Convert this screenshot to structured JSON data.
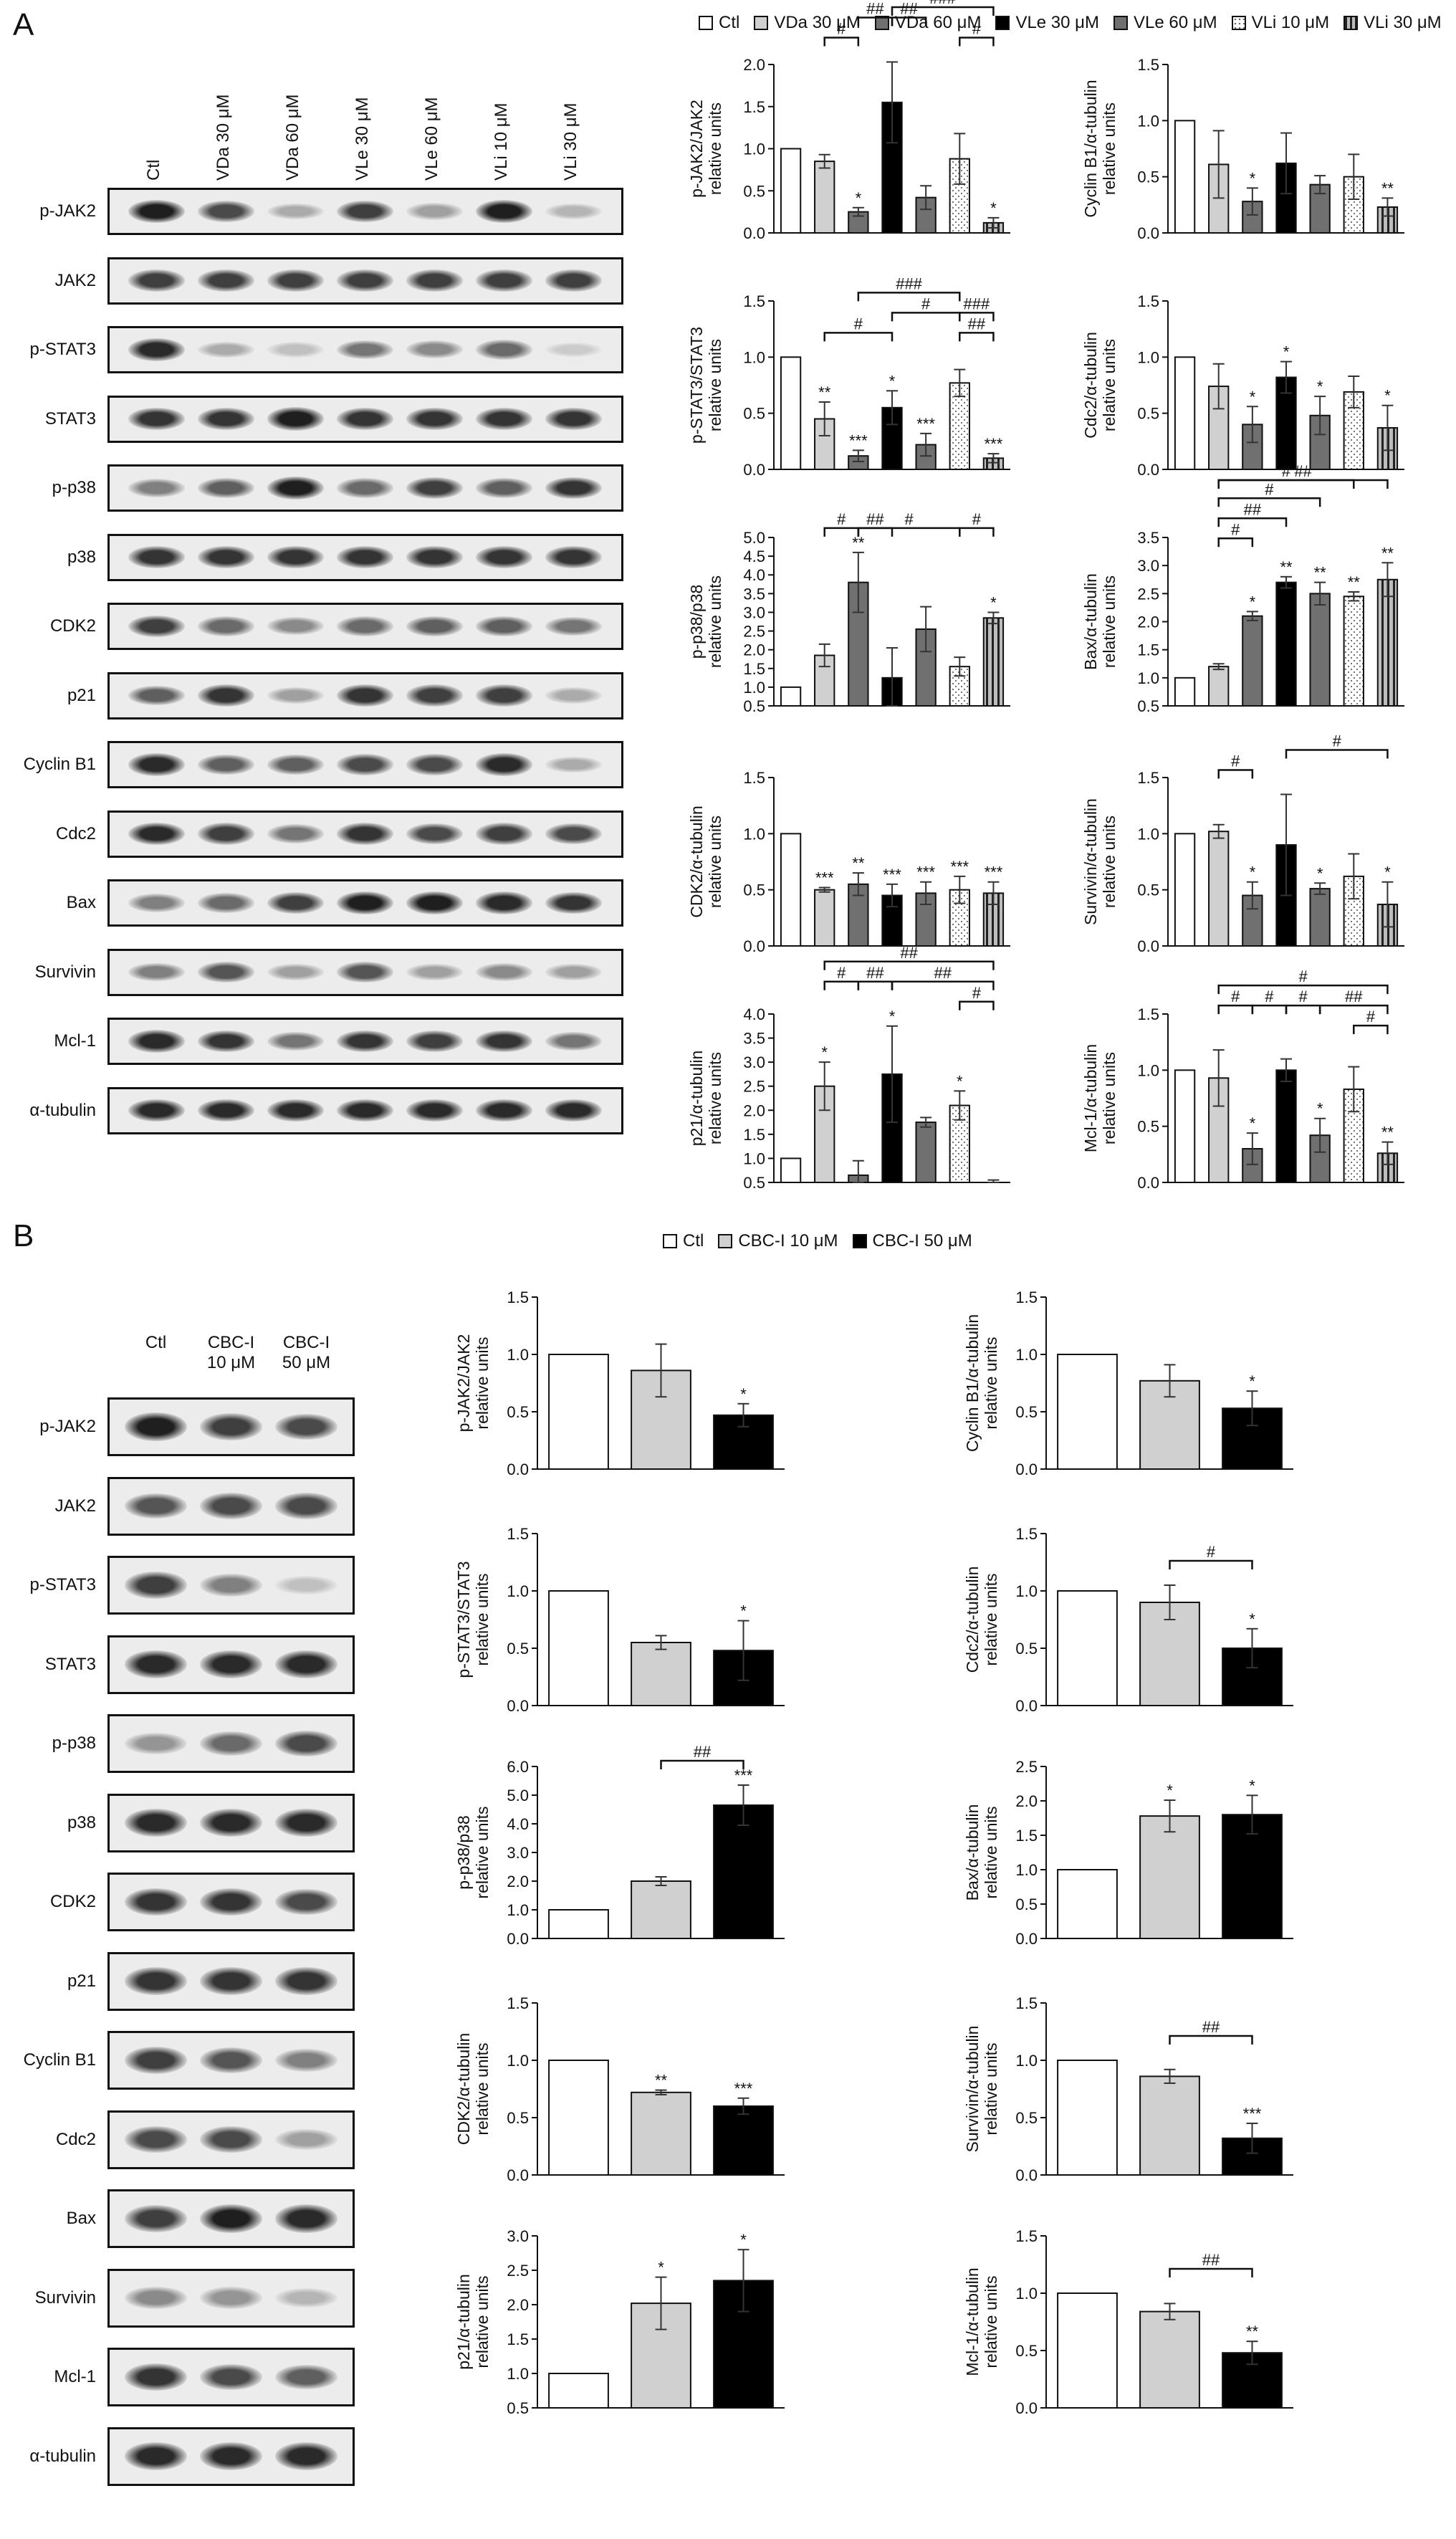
{
  "panelA": {
    "letter": "A",
    "legend": [
      {
        "label": "Ctl",
        "style": "white"
      },
      {
        "label": "VDa 30 μM",
        "style": "light"
      },
      {
        "label": "VDa 60 μM",
        "style": "dark"
      },
      {
        "label": "VLe 30 μM",
        "style": "black"
      },
      {
        "label": "VLe 60 μM",
        "style": "dark"
      },
      {
        "label": "VLi 10 μM",
        "style": "dotted"
      },
      {
        "label": "VLi 30 μM",
        "style": "striped"
      }
    ],
    "lanes": [
      "Ctl",
      "VDa 30 μM",
      "VDa 60 μM",
      "VLe 30 μM",
      "VLe 60 μM",
      "VLi 10 μM",
      "VLi 30 μM"
    ],
    "proteins": [
      "p-JAK2",
      "JAK2",
      "p-STAT3",
      "STAT3",
      "p-p38",
      "p38",
      "CDK2",
      "p21",
      "Cyclin B1",
      "Cdc2",
      "Bax",
      "Survivin",
      "Mcl-1",
      "α-tubulin"
    ]
  },
  "panelB": {
    "letter": "B",
    "legend": [
      {
        "label": "Ctl",
        "style": "white"
      },
      {
        "label": "CBC-I 10 μM",
        "style": "light"
      },
      {
        "label": "CBC-I 50 μM",
        "style": "black"
      }
    ],
    "lanes": [
      "Ctl",
      "CBC-I\n10 μM",
      "CBC-I\n50 μM"
    ],
    "lane_line1": [
      "Ctl",
      "CBC-I",
      "CBC-I"
    ],
    "lane_line2": [
      "",
      "10 μM",
      "50 μM"
    ],
    "proteins": [
      "p-JAK2",
      "JAK2",
      "p-STAT3",
      "STAT3",
      "p-p38",
      "p38",
      "CDK2",
      "p21",
      "Cyclin B1",
      "Cdc2",
      "Bax",
      "Survivin",
      "Mcl-1",
      "α-tubulin"
    ]
  },
  "band_intensity": {
    "A": [
      [
        0.95,
        0.75,
        0.3,
        0.8,
        0.35,
        0.95,
        0.25
      ],
      [
        0.8,
        0.8,
        0.8,
        0.8,
        0.8,
        0.8,
        0.8
      ],
      [
        0.9,
        0.3,
        0.2,
        0.55,
        0.45,
        0.6,
        0.15
      ],
      [
        0.85,
        0.85,
        0.95,
        0.85,
        0.85,
        0.85,
        0.85
      ],
      [
        0.5,
        0.65,
        0.95,
        0.6,
        0.8,
        0.65,
        0.85
      ],
      [
        0.85,
        0.85,
        0.85,
        0.85,
        0.85,
        0.85,
        0.85
      ],
      [
        0.8,
        0.6,
        0.45,
        0.6,
        0.65,
        0.65,
        0.55
      ],
      [
        0.65,
        0.85,
        0.35,
        0.85,
        0.8,
        0.8,
        0.3
      ],
      [
        0.9,
        0.65,
        0.65,
        0.75,
        0.75,
        0.9,
        0.3
      ],
      [
        0.9,
        0.8,
        0.55,
        0.85,
        0.75,
        0.8,
        0.75
      ],
      [
        0.5,
        0.6,
        0.8,
        0.95,
        0.95,
        0.9,
        0.85
      ],
      [
        0.5,
        0.7,
        0.35,
        0.7,
        0.35,
        0.45,
        0.35
      ],
      [
        0.9,
        0.85,
        0.55,
        0.85,
        0.8,
        0.85,
        0.55
      ],
      [
        0.9,
        0.9,
        0.9,
        0.9,
        0.9,
        0.9,
        0.9
      ]
    ],
    "B": [
      [
        0.95,
        0.8,
        0.75
      ],
      [
        0.7,
        0.75,
        0.75
      ],
      [
        0.8,
        0.5,
        0.2
      ],
      [
        0.9,
        0.9,
        0.9
      ],
      [
        0.4,
        0.6,
        0.75
      ],
      [
        0.9,
        0.9,
        0.9
      ],
      [
        0.85,
        0.85,
        0.75
      ],
      [
        0.85,
        0.85,
        0.85
      ],
      [
        0.8,
        0.7,
        0.5
      ],
      [
        0.75,
        0.75,
        0.35
      ],
      [
        0.8,
        0.95,
        0.9
      ],
      [
        0.45,
        0.4,
        0.25
      ],
      [
        0.85,
        0.75,
        0.65
      ],
      [
        0.9,
        0.9,
        0.9
      ]
    ]
  },
  "colors": {
    "white": "#ffffff",
    "light": "#d0d0d0",
    "dark": "#707070",
    "black": "#000000"
  },
  "chart_data": [
    {
      "id": "A-pJAK2",
      "type": "bar",
      "panel": "A",
      "ylabel": "p-JAK2/JAK2\nrelative units",
      "ylim": [
        0,
        2.0
      ],
      "yticks": [
        "0.0",
        "0.5",
        "1.0",
        "1.5",
        "2.0"
      ],
      "values": [
        1.0,
        0.85,
        0.25,
        1.55,
        0.42,
        0.88,
        0.12
      ],
      "errors": [
        0,
        0.08,
        0.05,
        0.48,
        0.14,
        0.3,
        0.06
      ],
      "stars": [
        "",
        "",
        "*",
        "",
        "",
        "",
        "*"
      ],
      "brackets": [
        {
          "from": 1,
          "to": 2,
          "label": "#",
          "level": 0
        },
        {
          "from": 3,
          "to": 4,
          "label": "##",
          "level": 1
        },
        {
          "from": 5,
          "to": 6,
          "label": "#",
          "level": 0
        },
        {
          "from": 2,
          "to": 3,
          "label": "##",
          "level": 1
        },
        {
          "from": 3,
          "to": 6,
          "label": "###",
          "level": 2
        }
      ]
    },
    {
      "id": "A-CyclinB1",
      "type": "bar",
      "panel": "A",
      "ylabel": "Cyclin B1/α-tubulin\nrelative units",
      "ylim": [
        0,
        1.5
      ],
      "yticks": [
        "0.0",
        "0.5",
        "1.0",
        "1.5"
      ],
      "values": [
        1.0,
        0.61,
        0.28,
        0.62,
        0.43,
        0.5,
        0.23
      ],
      "errors": [
        0,
        0.3,
        0.12,
        0.27,
        0.08,
        0.2,
        0.08
      ],
      "stars": [
        "",
        "",
        "*",
        "",
        "",
        "",
        "**"
      ],
      "brackets": []
    },
    {
      "id": "A-pSTAT3",
      "type": "bar",
      "panel": "A",
      "ylabel": "p-STAT3/STAT3\nrelative units",
      "ylim": [
        0,
        1.5
      ],
      "yticks": [
        "0.0",
        "0.5",
        "1.0",
        "1.5"
      ],
      "values": [
        1.0,
        0.45,
        0.12,
        0.55,
        0.22,
        0.77,
        0.1
      ],
      "errors": [
        0,
        0.15,
        0.05,
        0.15,
        0.1,
        0.12,
        0.04
      ],
      "stars": [
        "",
        "**",
        "***",
        "*",
        "***",
        "",
        "***"
      ],
      "brackets": [
        {
          "from": 1,
          "to": 3,
          "label": "#",
          "level": 0
        },
        {
          "from": 5,
          "to": 6,
          "label": "##",
          "level": 0
        },
        {
          "from": 3,
          "to": 5,
          "label": "#",
          "level": 1
        },
        {
          "from": 5,
          "to": 6,
          "label": "###",
          "level": 1
        },
        {
          "from": 2,
          "to": 5,
          "label": "###",
          "level": 2
        }
      ]
    },
    {
      "id": "A-Cdc2",
      "type": "bar",
      "panel": "A",
      "ylabel": "Cdc2/α-tubulin\nrelative units",
      "ylim": [
        0,
        1.5
      ],
      "yticks": [
        "0.0",
        "0.5",
        "1.0",
        "1.5"
      ],
      "values": [
        1.0,
        0.74,
        0.4,
        0.82,
        0.48,
        0.69,
        0.37
      ],
      "errors": [
        0,
        0.2,
        0.16,
        0.14,
        0.17,
        0.14,
        0.2
      ],
      "stars": [
        "",
        "",
        "*",
        "*",
        "*",
        "",
        "*"
      ],
      "brackets": []
    },
    {
      "id": "A-pp38",
      "type": "bar",
      "panel": "A",
      "ylabel": "p-p38/p38\nrelative units",
      "ylim": [
        0.5,
        5.0
      ],
      "yticks": [
        "0.5",
        "1.0",
        "1.5",
        "2.0",
        "2.5",
        "3.0",
        "3.5",
        "4.0",
        "4.5",
        "5.0"
      ],
      "values": [
        1.0,
        1.85,
        3.8,
        1.25,
        2.55,
        1.55,
        2.85
      ],
      "errors": [
        0,
        0.3,
        0.8,
        0.8,
        0.6,
        0.25,
        0.15
      ],
      "stars": [
        "",
        "",
        "**",
        "",
        "",
        "",
        "*"
      ],
      "brackets": [
        {
          "from": 1,
          "to": 2,
          "label": "#",
          "level": 0
        },
        {
          "from": 2,
          "to": 3,
          "label": "##",
          "level": 0
        },
        {
          "from": 2,
          "to": 5,
          "label": "#",
          "level": 0
        },
        {
          "from": 5,
          "to": 6,
          "label": "#",
          "level": 0
        }
      ]
    },
    {
      "id": "A-Bax",
      "type": "bar",
      "panel": "A",
      "ylabel": "Bax/α-tubulin\nrelative units",
      "ylim": [
        0.5,
        3.5
      ],
      "yticks": [
        "0.5",
        "1.0",
        "1.5",
        "2.0",
        "2.5",
        "3.0",
        "3.5"
      ],
      "values": [
        1.0,
        1.2,
        2.1,
        2.7,
        2.5,
        2.45,
        2.75
      ],
      "errors": [
        0,
        0.05,
        0.08,
        0.1,
        0.2,
        0.08,
        0.3
      ],
      "stars": [
        "",
        "",
        "*",
        "**",
        "**",
        "**",
        "**"
      ],
      "brackets": [
        {
          "from": 1,
          "to": 2,
          "label": "#",
          "level": 0
        },
        {
          "from": 1,
          "to": 3,
          "label": "##",
          "level": 1
        },
        {
          "from": 1,
          "to": 4,
          "label": "#",
          "level": 2
        },
        {
          "from": 1,
          "to": 5,
          "label": "#",
          "level": 3
        },
        {
          "from": 1,
          "to": 6,
          "label": "##",
          "level": 4
        }
      ]
    },
    {
      "id": "A-CDK2",
      "type": "bar",
      "panel": "A",
      "ylabel": "CDK2/α-tubulin\nrelative units",
      "ylim": [
        0,
        1.5
      ],
      "yticks": [
        "0.0",
        "0.5",
        "1.0",
        "1.5"
      ],
      "values": [
        1.0,
        0.5,
        0.55,
        0.45,
        0.47,
        0.5,
        0.47
      ],
      "errors": [
        0,
        0.02,
        0.1,
        0.1,
        0.1,
        0.12,
        0.1
      ],
      "stars": [
        "",
        "***",
        "**",
        "***",
        "***",
        "***",
        "***"
      ],
      "brackets": []
    },
    {
      "id": "A-Survivin",
      "type": "bar",
      "panel": "A",
      "ylabel": "Survivin/α-tubulin\nrelative units",
      "ylim": [
        0,
        1.5
      ],
      "yticks": [
        "0.0",
        "0.5",
        "1.0",
        "1.5"
      ],
      "values": [
        1.0,
        1.02,
        0.45,
        0.9,
        0.51,
        0.62,
        0.37
      ],
      "errors": [
        0,
        0.06,
        0.12,
        0.45,
        0.05,
        0.2,
        0.2
      ],
      "stars": [
        "",
        "",
        "*",
        "",
        "*",
        "",
        "*"
      ],
      "brackets": [
        {
          "from": 1,
          "to": 2,
          "label": "#",
          "level": 0
        },
        {
          "from": 3,
          "to": 6,
          "label": "#",
          "level": 1
        }
      ]
    },
    {
      "id": "A-p21",
      "type": "bar",
      "panel": "A",
      "ylabel": "p21/α-tubulin\nrelative units",
      "ylim": [
        0.5,
        4.0
      ],
      "yticks": [
        "0.5",
        "1.0",
        "1.5",
        "2.0",
        "2.5",
        "3.0",
        "3.5",
        "4.0"
      ],
      "values": [
        1.0,
        2.5,
        0.65,
        2.75,
        1.75,
        2.1,
        0.4
      ],
      "errors": [
        0,
        0.5,
        0.3,
        1.0,
        0.1,
        0.3,
        0.15
      ],
      "stars": [
        "",
        "*",
        "",
        "*",
        "",
        "*",
        ""
      ],
      "brackets": [
        {
          "from": 5,
          "to": 6,
          "label": "#",
          "level": 0
        },
        {
          "from": 1,
          "to": 2,
          "label": "#",
          "level": 1
        },
        {
          "from": 2,
          "to": 3,
          "label": "##",
          "level": 1
        },
        {
          "from": 3,
          "to": 6,
          "label": "##",
          "level": 1
        },
        {
          "from": 1,
          "to": 6,
          "label": "##",
          "level": 2
        }
      ]
    },
    {
      "id": "A-Mcl1",
      "type": "bar",
      "panel": "A",
      "ylabel": "Mcl-1/α-tubulin\nrelative units",
      "ylim": [
        0,
        1.5
      ],
      "yticks": [
        "0.0",
        "0.5",
        "1.0",
        "1.5"
      ],
      "values": [
        1.0,
        0.93,
        0.3,
        1.0,
        0.42,
        0.83,
        0.26
      ],
      "errors": [
        0,
        0.25,
        0.14,
        0.1,
        0.15,
        0.2,
        0.1
      ],
      "stars": [
        "",
        "",
        "*",
        "",
        "*",
        "",
        "**"
      ],
      "brackets": [
        {
          "from": 5,
          "to": 6,
          "label": "#",
          "level": 0
        },
        {
          "from": 1,
          "to": 2,
          "label": "#",
          "level": 1
        },
        {
          "from": 2,
          "to": 3,
          "label": "#",
          "level": 1
        },
        {
          "from": 3,
          "to": 4,
          "label": "#",
          "level": 1
        },
        {
          "from": 4,
          "to": 6,
          "label": "##",
          "level": 1
        },
        {
          "from": 1,
          "to": 6,
          "label": "#",
          "level": 2
        }
      ]
    },
    {
      "id": "B-pJAK2",
      "type": "bar",
      "panel": "B",
      "ylabel": "p-JAK2/JAK2\nrelative units",
      "ylim": [
        0,
        1.5
      ],
      "yticks": [
        "0.0",
        "0.5",
        "1.0",
        "1.5"
      ],
      "values": [
        1.0,
        0.86,
        0.47
      ],
      "errors": [
        0,
        0.23,
        0.1
      ],
      "stars": [
        "",
        "",
        "*"
      ],
      "brackets": []
    },
    {
      "id": "B-CyclinB1",
      "type": "bar",
      "panel": "B",
      "ylabel": "Cyclin B1/α-tubulin\nrelative units",
      "ylim": [
        0,
        1.5
      ],
      "yticks": [
        "0.0",
        "0.5",
        "1.0",
        "1.5"
      ],
      "values": [
        1.0,
        0.77,
        0.53
      ],
      "errors": [
        0,
        0.14,
        0.15
      ],
      "stars": [
        "",
        "",
        "*"
      ],
      "brackets": []
    },
    {
      "id": "B-pSTAT3",
      "type": "bar",
      "panel": "B",
      "ylabel": "p-STAT3/STAT3\nrelative units",
      "ylim": [
        0,
        1.5
      ],
      "yticks": [
        "0.0",
        "0.5",
        "1.0",
        "1.5"
      ],
      "values": [
        1.0,
        0.55,
        0.48
      ],
      "errors": [
        0,
        0.06,
        0.26
      ],
      "stars": [
        "",
        "",
        "*"
      ],
      "brackets": []
    },
    {
      "id": "B-Cdc2",
      "type": "bar",
      "panel": "B",
      "ylabel": "Cdc2/α-tubulin\nrelative units",
      "ylim": [
        0,
        1.5
      ],
      "yticks": [
        "0.0",
        "0.5",
        "1.0",
        "1.5"
      ],
      "values": [
        1.0,
        0.9,
        0.5
      ],
      "errors": [
        0,
        0.15,
        0.17
      ],
      "stars": [
        "",
        "",
        "*"
      ],
      "brackets": [
        {
          "from": 1,
          "to": 2,
          "label": "#",
          "level": 0
        }
      ]
    },
    {
      "id": "B-pp38",
      "type": "bar",
      "panel": "B",
      "ylabel": "p-p38/p38\nrelative units",
      "ylim": [
        0,
        6.0
      ],
      "yticks": [
        "0.0",
        "1.0",
        "2.0",
        "3.0",
        "4.0",
        "5.0",
        "6.0"
      ],
      "values": [
        1.0,
        2.0,
        4.65
      ],
      "errors": [
        0,
        0.15,
        0.7
      ],
      "stars": [
        "",
        "",
        "***"
      ],
      "brackets": [
        {
          "from": 1,
          "to": 2,
          "label": "##",
          "level": 0
        }
      ]
    },
    {
      "id": "B-Bax",
      "type": "bar",
      "panel": "B",
      "ylabel": "Bax/α-tubulin\nrelative units",
      "ylim": [
        0,
        2.5
      ],
      "yticks": [
        "0.0",
        "0.5",
        "1.0",
        "1.5",
        "2.0",
        "2.5"
      ],
      "values": [
        1.0,
        1.78,
        1.8
      ],
      "errors": [
        0,
        0.23,
        0.28
      ],
      "stars": [
        "",
        "*",
        "*"
      ],
      "brackets": []
    },
    {
      "id": "B-CDK2",
      "type": "bar",
      "panel": "B",
      "ylabel": "CDK2/α-tubulin\nrelative units",
      "ylim": [
        0,
        1.5
      ],
      "yticks": [
        "0.0",
        "0.5",
        "1.0",
        "1.5"
      ],
      "values": [
        1.0,
        0.72,
        0.6
      ],
      "errors": [
        0,
        0.02,
        0.07
      ],
      "stars": [
        "",
        "**",
        "***"
      ],
      "brackets": []
    },
    {
      "id": "B-Survivin",
      "type": "bar",
      "panel": "B",
      "ylabel": "Survivin/α-tubulin\nrelative units",
      "ylim": [
        0,
        1.5
      ],
      "yticks": [
        "0.0",
        "0.5",
        "1.0",
        "1.5"
      ],
      "values": [
        1.0,
        0.86,
        0.32
      ],
      "errors": [
        0,
        0.06,
        0.13
      ],
      "stars": [
        "",
        "",
        "***"
      ],
      "brackets": [
        {
          "from": 1,
          "to": 2,
          "label": "##",
          "level": 0
        }
      ]
    },
    {
      "id": "B-p21",
      "type": "bar",
      "panel": "B",
      "ylabel": "p21/α-tubulin\nrelative units",
      "ylim": [
        0.5,
        3.0
      ],
      "yticks": [
        "0.5",
        "1.0",
        "1.5",
        "2.0",
        "2.5",
        "3.0"
      ],
      "values": [
        1.0,
        2.02,
        2.35
      ],
      "errors": [
        0,
        0.38,
        0.45
      ],
      "stars": [
        "",
        "*",
        "*"
      ],
      "brackets": []
    },
    {
      "id": "B-Mcl1",
      "type": "bar",
      "panel": "B",
      "ylabel": "Mcl-1/α-tubulin\nrelative units",
      "ylim": [
        0,
        1.5
      ],
      "yticks": [
        "0.0",
        "0.5",
        "1.0",
        "1.5"
      ],
      "values": [
        1.0,
        0.84,
        0.48
      ],
      "errors": [
        0,
        0.07,
        0.1
      ],
      "stars": [
        "",
        "",
        "**"
      ],
      "brackets": [
        {
          "from": 1,
          "to": 2,
          "label": "##",
          "level": 0
        }
      ]
    }
  ]
}
